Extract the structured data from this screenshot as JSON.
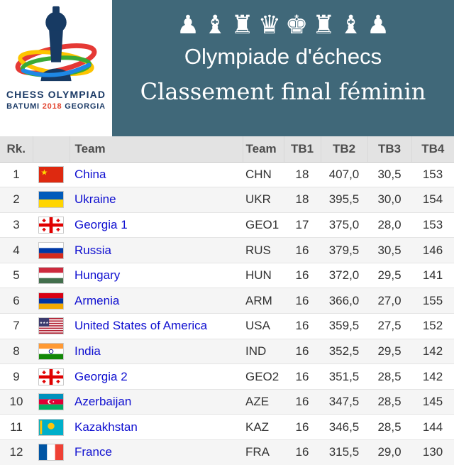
{
  "logo": {
    "line1": "CHESS OLYMPIAD",
    "batumi": "BATUMI",
    "year": "2018",
    "georgia": "GEORGIA"
  },
  "header": {
    "pieces_icon": "♟♝♜♛♚♜♝♟",
    "title": "Olympiade d'échecs",
    "subtitle": "Classement final féminin",
    "colors": {
      "banner_bg": "#406879",
      "link": "#0f0fd0",
      "year": "#e2442f",
      "header_row_bg": "#e3e3e3"
    }
  },
  "table": {
    "columns": [
      "Rk.",
      "Team",
      "Team",
      "TB1",
      "TB2",
      "TB3",
      "TB4"
    ],
    "rows": [
      {
        "rk": "1",
        "flag": "cn",
        "flag_name": "china-flag-icon",
        "team": "China",
        "code": "CHN",
        "tb1": "18",
        "tb2": "407,0",
        "tb3": "30,5",
        "tb4": "153"
      },
      {
        "rk": "2",
        "flag": "ua",
        "flag_name": "ukraine-flag-icon",
        "team": "Ukraine",
        "code": "UKR",
        "tb1": "18",
        "tb2": "395,5",
        "tb3": "30,0",
        "tb4": "154"
      },
      {
        "rk": "3",
        "flag": "ge",
        "flag_name": "georgia-flag-icon",
        "team": "Georgia 1",
        "code": "GEO1",
        "tb1": "17",
        "tb2": "375,0",
        "tb3": "28,0",
        "tb4": "153"
      },
      {
        "rk": "4",
        "flag": "ru",
        "flag_name": "russia-flag-icon",
        "team": "Russia",
        "code": "RUS",
        "tb1": "16",
        "tb2": "379,5",
        "tb3": "30,5",
        "tb4": "146"
      },
      {
        "rk": "5",
        "flag": "hu",
        "flag_name": "hungary-flag-icon",
        "team": "Hungary",
        "code": "HUN",
        "tb1": "16",
        "tb2": "372,0",
        "tb3": "29,5",
        "tb4": "141"
      },
      {
        "rk": "6",
        "flag": "am",
        "flag_name": "armenia-flag-icon",
        "team": "Armenia",
        "code": "ARM",
        "tb1": "16",
        "tb2": "366,0",
        "tb3": "27,0",
        "tb4": "155"
      },
      {
        "rk": "7",
        "flag": "us",
        "flag_name": "usa-flag-icon",
        "team": "United States of America",
        "code": "USA",
        "tb1": "16",
        "tb2": "359,5",
        "tb3": "27,5",
        "tb4": "152"
      },
      {
        "rk": "8",
        "flag": "in",
        "flag_name": "india-flag-icon",
        "team": "India",
        "code": "IND",
        "tb1": "16",
        "tb2": "352,5",
        "tb3": "29,5",
        "tb4": "142"
      },
      {
        "rk": "9",
        "flag": "ge",
        "flag_name": "georgia-flag-icon",
        "team": "Georgia 2",
        "code": "GEO2",
        "tb1": "16",
        "tb2": "351,5",
        "tb3": "28,5",
        "tb4": "142"
      },
      {
        "rk": "10",
        "flag": "az",
        "flag_name": "azerbaijan-flag-icon",
        "team": "Azerbaijan",
        "code": "AZE",
        "tb1": "16",
        "tb2": "347,5",
        "tb3": "28,5",
        "tb4": "145"
      },
      {
        "rk": "11",
        "flag": "kz",
        "flag_name": "kazakhstan-flag-icon",
        "team": "Kazakhstan",
        "code": "KAZ",
        "tb1": "16",
        "tb2": "346,5",
        "tb3": "28,5",
        "tb4": "144"
      },
      {
        "rk": "12",
        "flag": "fr",
        "flag_name": "france-flag-icon",
        "team": "France",
        "code": "FRA",
        "tb1": "16",
        "tb2": "315,5",
        "tb3": "29,0",
        "tb4": "130"
      }
    ]
  }
}
